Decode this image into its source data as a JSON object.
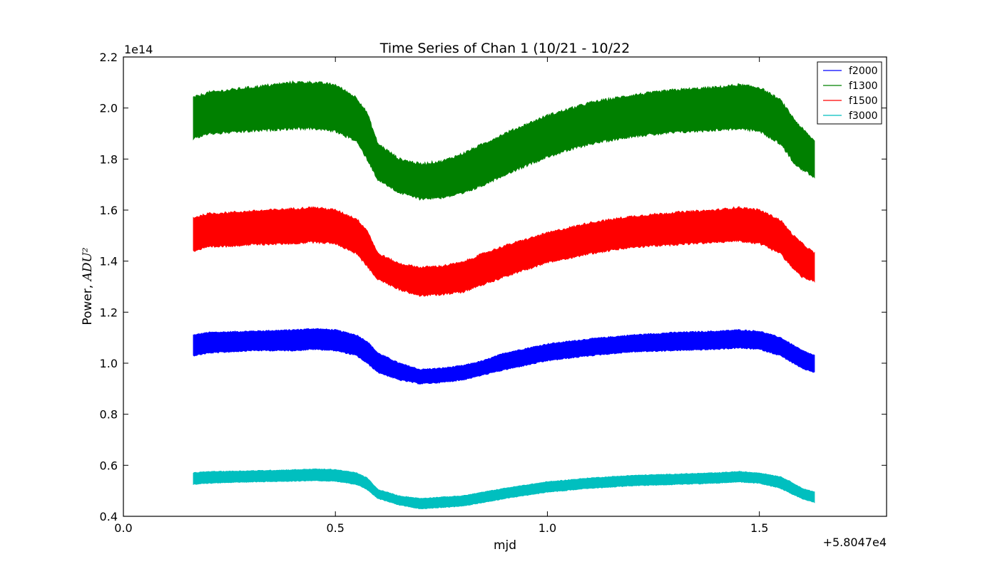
{
  "chart_data": {
    "type": "line",
    "title": "Time Series of Chan 1 (10/21 - 10/22",
    "xlabel": "mjd",
    "ylabel_text": "Power, ",
    "ylabel_math": "ADU²",
    "x_offset_label": "+5.8047e4",
    "y_scale_label": "1e14",
    "xlim": [
      0.0,
      1.8
    ],
    "ylim": [
      0.4,
      2.2
    ],
    "x_ticks": [
      0.0,
      0.5,
      1.0,
      1.5
    ],
    "x_tick_labels": [
      "0.0",
      "0.5",
      "1.0",
      "1.5"
    ],
    "y_ticks": [
      0.4,
      0.6,
      0.8,
      1.0,
      1.2,
      1.4,
      1.6,
      1.8,
      2.0,
      2.2
    ],
    "y_tick_labels": [
      "0.4",
      "0.6",
      "0.8",
      "1.0",
      "1.2",
      "1.4",
      "1.6",
      "1.8",
      "2.0",
      "2.2"
    ],
    "grid": false,
    "legend_position": "top-right",
    "x": [
      0.165,
      0.2,
      0.3,
      0.4,
      0.45,
      0.5,
      0.55,
      0.575,
      0.6,
      0.65,
      0.7,
      0.75,
      0.8,
      0.85,
      0.9,
      1.0,
      1.1,
      1.2,
      1.3,
      1.4,
      1.45,
      1.5,
      1.55,
      1.58,
      1.6,
      1.63
    ],
    "series": [
      {
        "name": "f2000",
        "color": "#0000ff",
        "upper": [
          1.11,
          1.12,
          1.125,
          1.13,
          1.135,
          1.13,
          1.11,
          1.085,
          1.04,
          1.0,
          0.975,
          0.98,
          0.99,
          1.01,
          1.04,
          1.075,
          1.095,
          1.11,
          1.12,
          1.125,
          1.13,
          1.125,
          1.1,
          1.07,
          1.05,
          1.03
        ],
        "lower": [
          1.03,
          1.04,
          1.05,
          1.05,
          1.055,
          1.05,
          1.03,
          1.0,
          0.965,
          0.935,
          0.92,
          0.925,
          0.935,
          0.955,
          0.975,
          1.01,
          1.03,
          1.045,
          1.05,
          1.055,
          1.06,
          1.055,
          1.03,
          1.0,
          0.98,
          0.965
        ]
      },
      {
        "name": "f1300",
        "color": "#008000",
        "upper": [
          2.04,
          2.06,
          2.08,
          2.1,
          2.1,
          2.09,
          2.04,
          1.98,
          1.86,
          1.8,
          1.78,
          1.79,
          1.82,
          1.86,
          1.9,
          1.97,
          2.02,
          2.05,
          2.07,
          2.08,
          2.09,
          2.08,
          2.03,
          1.96,
          1.92,
          1.87
        ],
        "lower": [
          1.88,
          1.9,
          1.91,
          1.92,
          1.92,
          1.91,
          1.87,
          1.8,
          1.72,
          1.67,
          1.645,
          1.65,
          1.665,
          1.7,
          1.74,
          1.81,
          1.86,
          1.89,
          1.905,
          1.915,
          1.92,
          1.91,
          1.86,
          1.79,
          1.76,
          1.73
        ]
      },
      {
        "name": "f1500",
        "color": "#ff0000",
        "upper": [
          1.57,
          1.585,
          1.595,
          1.605,
          1.61,
          1.6,
          1.565,
          1.52,
          1.43,
          1.39,
          1.375,
          1.38,
          1.395,
          1.43,
          1.46,
          1.51,
          1.55,
          1.575,
          1.59,
          1.6,
          1.61,
          1.6,
          1.56,
          1.5,
          1.47,
          1.43
        ],
        "lower": [
          1.44,
          1.455,
          1.465,
          1.47,
          1.475,
          1.47,
          1.43,
          1.38,
          1.33,
          1.29,
          1.265,
          1.27,
          1.28,
          1.31,
          1.34,
          1.395,
          1.43,
          1.455,
          1.465,
          1.475,
          1.48,
          1.47,
          1.43,
          1.37,
          1.34,
          1.32
        ]
      },
      {
        "name": "f3000",
        "color": "#00bfbf",
        "upper": [
          0.57,
          0.575,
          0.578,
          0.582,
          0.585,
          0.583,
          0.57,
          0.55,
          0.505,
          0.48,
          0.47,
          0.475,
          0.48,
          0.495,
          0.51,
          0.535,
          0.55,
          0.56,
          0.565,
          0.57,
          0.575,
          0.57,
          0.555,
          0.53,
          0.51,
          0.495
        ],
        "lower": [
          0.525,
          0.53,
          0.535,
          0.538,
          0.54,
          0.538,
          0.525,
          0.505,
          0.47,
          0.445,
          0.43,
          0.435,
          0.44,
          0.455,
          0.47,
          0.495,
          0.51,
          0.52,
          0.525,
          0.53,
          0.535,
          0.53,
          0.51,
          0.485,
          0.47,
          0.455
        ]
      }
    ]
  }
}
